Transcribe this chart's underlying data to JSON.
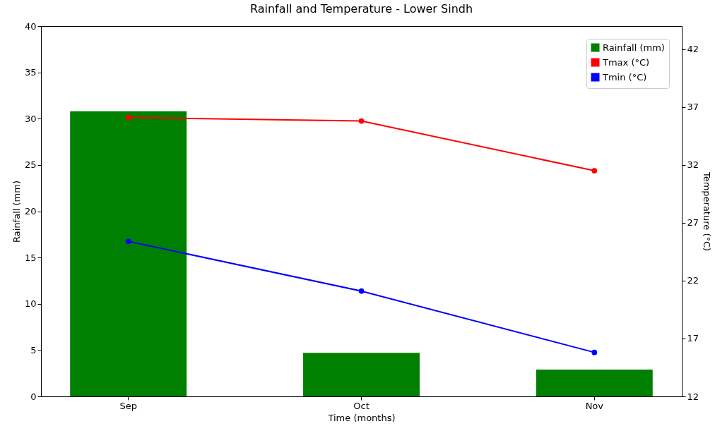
{
  "chart_data": {
    "type": "bar",
    "title": "Rainfall and Temperature - Lower Sindh",
    "xlabel": "Time (months)",
    "ylabel": "Rainfall (mm)",
    "y2label": "Temperature (°C)",
    "categories": [
      "Sep",
      "Oct",
      "Nov"
    ],
    "series": [
      {
        "name": "Rainfall (mm)",
        "color": "#008000",
        "values": [
          30.8,
          4.7,
          2.9
        ]
      },
      {
        "name": "Tmax (°C)",
        "type": "line",
        "axis": "y2",
        "color": "#ff0000",
        "values": [
          36.1,
          35.8,
          31.5
        ]
      },
      {
        "name": "Tmin (°C)",
        "type": "line",
        "axis": "y2",
        "color": "#0000ff",
        "values": [
          25.4,
          21.1,
          15.8
        ]
      }
    ],
    "ylim": [
      0,
      40
    ],
    "yticks": [
      0,
      5,
      10,
      15,
      20,
      25,
      30,
      35,
      40
    ],
    "y2lim": [
      12,
      44
    ],
    "y2ticks": [
      12,
      17,
      22,
      27,
      32,
      37,
      42
    ],
    "grid": false,
    "legend": "top right",
    "marker": "circle"
  }
}
